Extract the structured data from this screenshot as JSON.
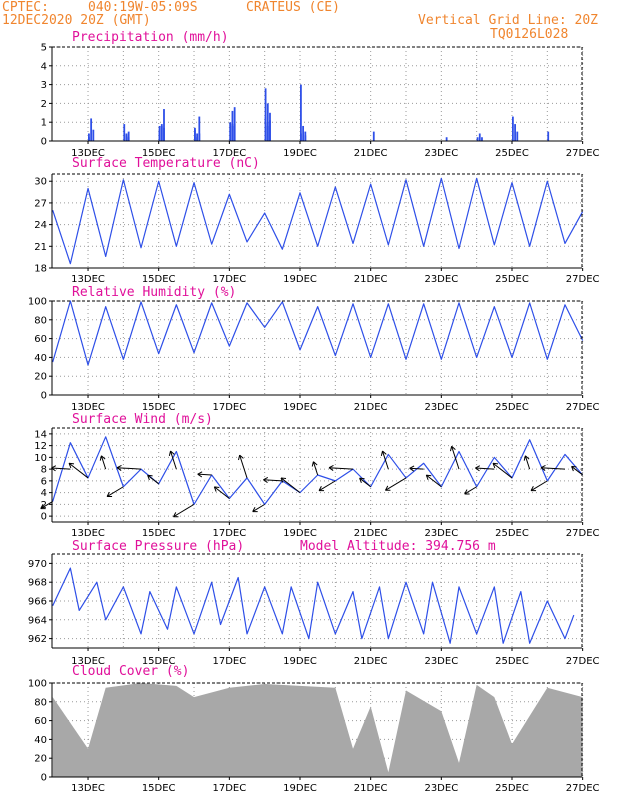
{
  "header": {
    "source": "CPTEC:",
    "coords": "040:19W-05:09S",
    "station": "CRATEUS (CE)",
    "date": "12DEC2020 20Z (GMT)",
    "grid_note": "Vertical Grid Line: 20Z",
    "code": "TQ0126L028"
  },
  "model_altitude": "Model Altitude: 394.756 m",
  "colors": {
    "header": "#f0852e",
    "title": "#e0109a",
    "line": "#2e4fe8",
    "cloud": "#a8a8a8",
    "arrow": "#000000"
  },
  "chart_data": [
    {
      "type": "bar",
      "title": "Precipitation (mm/h)",
      "x_tick_labels": [
        "13DEC",
        "15DEC",
        "17DEC",
        "19DEC",
        "21DEC",
        "23DEC",
        "25DEC",
        "27DEC"
      ],
      "ylim": [
        0,
        5
      ],
      "y_ticks": [
        0,
        1,
        2,
        3,
        4,
        5
      ],
      "grid": true,
      "x": [
        "13DEC",
        "13DEC",
        "13DEC",
        "13DEC",
        "14DEC",
        "14DEC",
        "14DEC",
        "14DEC",
        "14DEC",
        "15DEC",
        "15DEC",
        "15DEC",
        "15DEC",
        "15DEC",
        "15DEC",
        "15DEC",
        "16DEC",
        "16DEC",
        "16DEC",
        "16DEC",
        "16DEC",
        "16DEC",
        "17DEC",
        "17DEC",
        "17DEC",
        "17DEC",
        "17DEC",
        "17DEC",
        "18DEC",
        "18DEC",
        "18DEC",
        "18DEC",
        "18DEC",
        "18DEC",
        "18DEC",
        "19DEC",
        "19DEC",
        "19DEC",
        "19DEC",
        "19DEC",
        "21DEC",
        "23DEC",
        "24DEC",
        "24DEC",
        "24DEC",
        "25DEC",
        "25DEC",
        "25DEC",
        "26DEC"
      ],
      "values": [
        0.4,
        1.2,
        0.6,
        0.2,
        0.3,
        0.5,
        0.9,
        0.4,
        0.2,
        0.6,
        0.8,
        0.7,
        0.5,
        0.9,
        1.7,
        0.8,
        0.4,
        1.3,
        0.6,
        0.2,
        0.4,
        0.7,
        0.8,
        0.9,
        1.0,
        1.6,
        1.8,
        0.9,
        0.8,
        1.1,
        1.3,
        2.0,
        1.5,
        2.8,
        1.0,
        0.3,
        0.4,
        0.8,
        0.5,
        3.0,
        0.5,
        0.2,
        0.2,
        0.4,
        0.2,
        1.3,
        0.9,
        0.5,
        0.5
      ]
    },
    {
      "type": "line",
      "title": "Surface Temperature (nC)",
      "x_tick_labels": [
        "13DEC",
        "15DEC",
        "17DEC",
        "19DEC",
        "21DEC",
        "23DEC",
        "25DEC",
        "27DEC"
      ],
      "ylim": [
        18,
        31
      ],
      "y_ticks": [
        18,
        21,
        24,
        27,
        30
      ],
      "grid": true,
      "x": [
        "12DEC 20Z",
        "13DEC 08Z",
        "13DEC 20Z",
        "14DEC 08Z",
        "14DEC 20Z",
        "15DEC 08Z",
        "15DEC 20Z",
        "16DEC 08Z",
        "16DEC 20Z",
        "17DEC 08Z",
        "17DEC 20Z",
        "18DEC 08Z",
        "18DEC 20Z",
        "19DEC 08Z",
        "19DEC 20Z",
        "20DEC 08Z",
        "20DEC 20Z",
        "21DEC 08Z",
        "21DEC 20Z",
        "22DEC 08Z",
        "22DEC 20Z",
        "23DEC 08Z",
        "23DEC 20Z",
        "24DEC 08Z",
        "24DEC 20Z",
        "25DEC 08Z",
        "25DEC 20Z",
        "26DEC 08Z",
        "26DEC 20Z",
        "27DEC 08Z",
        "27DEC 20Z"
      ],
      "values": [
        26.0,
        18.6,
        29.0,
        19.6,
        30.2,
        20.8,
        30.0,
        21.0,
        29.8,
        21.3,
        28.2,
        21.6,
        25.6,
        20.6,
        28.4,
        21.0,
        29.2,
        21.4,
        29.6,
        21.2,
        30.2,
        21.0,
        30.4,
        20.7,
        30.4,
        21.2,
        29.8,
        21.0,
        30.0,
        21.4,
        25.8
      ]
    },
    {
      "type": "line",
      "title": "Relative Humidity (%)",
      "x_tick_labels": [
        "13DEC",
        "15DEC",
        "17DEC",
        "19DEC",
        "21DEC",
        "23DEC",
        "25DEC",
        "27DEC"
      ],
      "ylim": [
        0,
        100
      ],
      "y_ticks": [
        0,
        20,
        40,
        60,
        80,
        100
      ],
      "grid": true,
      "x": [
        "12DEC 20Z",
        "13DEC 08Z",
        "13DEC 20Z",
        "14DEC 08Z",
        "14DEC 20Z",
        "15DEC 08Z",
        "15DEC 20Z",
        "16DEC 08Z",
        "16DEC 20Z",
        "17DEC 08Z",
        "17DEC 20Z",
        "18DEC 08Z",
        "18DEC 20Z",
        "19DEC 08Z",
        "19DEC 20Z",
        "20DEC 08Z",
        "20DEC 20Z",
        "21DEC 08Z",
        "21DEC 20Z",
        "22DEC 08Z",
        "22DEC 20Z",
        "23DEC 08Z",
        "23DEC 20Z",
        "24DEC 08Z",
        "24DEC 20Z",
        "25DEC 08Z",
        "25DEC 20Z",
        "26DEC 08Z",
        "26DEC 20Z",
        "27DEC 08Z",
        "27DEC 20Z"
      ],
      "values": [
        35,
        100,
        32,
        94,
        38,
        99,
        44,
        96,
        45,
        98,
        52,
        98,
        72,
        99,
        48,
        94,
        42,
        97,
        40,
        97,
        38,
        97,
        38,
        98,
        40,
        94,
        40,
        98,
        38,
        96,
        58
      ]
    },
    {
      "type": "line",
      "title": "Surface Wind (m/s)",
      "x_tick_labels": [
        "13DEC",
        "15DEC",
        "17DEC",
        "19DEC",
        "21DEC",
        "23DEC",
        "25DEC",
        "27DEC"
      ],
      "ylim": [
        -1,
        15
      ],
      "y_ticks": [
        0,
        2,
        4,
        6,
        8,
        10,
        12,
        14
      ],
      "grid": true,
      "x": [
        "12DEC 20Z",
        "13DEC 08Z",
        "13DEC 20Z",
        "14DEC 08Z",
        "14DEC 20Z",
        "15DEC 08Z",
        "15DEC 20Z",
        "16DEC 08Z",
        "16DEC 20Z",
        "17DEC 08Z",
        "17DEC 20Z",
        "18DEC 08Z",
        "18DEC 20Z",
        "19DEC 08Z",
        "19DEC 20Z",
        "20DEC 08Z",
        "20DEC 20Z",
        "21DEC 08Z",
        "21DEC 20Z",
        "22DEC 08Z",
        "22DEC 20Z",
        "23DEC 08Z",
        "23DEC 20Z",
        "24DEC 08Z",
        "24DEC 20Z",
        "25DEC 08Z",
        "25DEC 20Z",
        "26DEC 08Z",
        "26DEC 20Z",
        "27DEC 08Z",
        "27DEC 20Z"
      ],
      "values": [
        2.5,
        12.5,
        6.5,
        13.5,
        5.0,
        8.0,
        5.5,
        11.0,
        2.0,
        7.0,
        3.0,
        6.5,
        2.0,
        6.0,
        4.0,
        7.0,
        6.0,
        8.0,
        5.0,
        10.5,
        6.5,
        9.0,
        5.0,
        11.0,
        5.0,
        10.0,
        6.5,
        13.0,
        6.0,
        10.5,
        7.0
      ],
      "barbs": "black wind vector arrows along the series"
    },
    {
      "type": "line",
      "title": "Surface Pressure (hPa)",
      "x_tick_labels": [
        "13DEC",
        "15DEC",
        "17DEC",
        "19DEC",
        "21DEC",
        "23DEC",
        "25DEC",
        "27DEC"
      ],
      "ylim": [
        961,
        971
      ],
      "y_ticks": [
        962,
        964,
        966,
        968,
        970
      ],
      "grid": true,
      "x": [
        "12DEC 20Z",
        "13DEC 08Z",
        "13DEC 14Z",
        "14DEC 02Z",
        "14DEC 08Z",
        "14DEC 20Z",
        "15DEC 08Z",
        "15DEC 14Z",
        "16DEC 02Z",
        "16DEC 08Z",
        "16DEC 20Z",
        "17DEC 08Z",
        "17DEC 14Z",
        "18DEC 02Z",
        "18DEC 08Z",
        "18DEC 20Z",
        "19DEC 08Z",
        "19DEC 14Z",
        "20DEC 02Z",
        "20DEC 08Z",
        "20DEC 20Z",
        "21DEC 08Z",
        "21DEC 14Z",
        "22DEC 02Z",
        "22DEC 08Z",
        "22DEC 20Z",
        "23DEC 08Z",
        "23DEC 14Z",
        "24DEC 02Z",
        "24DEC 08Z",
        "24DEC 20Z",
        "25DEC 08Z",
        "25DEC 14Z",
        "26DEC 02Z",
        "26DEC 08Z",
        "26DEC 20Z",
        "27DEC 08Z",
        "27DEC 14Z"
      ],
      "values": [
        965.5,
        969.5,
        965.0,
        968.0,
        964.0,
        967.5,
        962.5,
        967.0,
        963.0,
        967.5,
        962.5,
        968.0,
        963.5,
        968.5,
        962.5,
        967.5,
        962.5,
        967.5,
        962.0,
        968.0,
        962.5,
        967.0,
        962.0,
        967.5,
        962.0,
        968.0,
        962.5,
        968.0,
        961.5,
        967.5,
        962.5,
        967.5,
        961.5,
        967.0,
        961.5,
        966.0,
        962.0,
        964.5
      ]
    },
    {
      "type": "area",
      "title": "Cloud Cover (%)",
      "x_tick_labels": [
        "13DEC",
        "15DEC",
        "17DEC",
        "19DEC",
        "21DEC",
        "23DEC",
        "25DEC",
        "27DEC"
      ],
      "ylim": [
        0,
        100
      ],
      "y_ticks": [
        0,
        20,
        40,
        60,
        80,
        100
      ],
      "grid": true,
      "x": [
        "12DEC 20Z",
        "13DEC 20Z",
        "14DEC 08Z",
        "15DEC 08Z",
        "16DEC 08Z",
        "16DEC 20Z",
        "17DEC 20Z",
        "18DEC 20Z",
        "19DEC 20Z",
        "20DEC 20Z",
        "21DEC 08Z",
        "21DEC 20Z",
        "22DEC 08Z",
        "22DEC 20Z",
        "23DEC 20Z",
        "24DEC 08Z",
        "24DEC 20Z",
        "25DEC 08Z",
        "25DEC 20Z",
        "26DEC 20Z",
        "27DEC 20Z"
      ],
      "values": [
        85,
        30,
        95,
        100,
        97,
        85,
        95,
        99,
        97,
        95,
        30,
        75,
        5,
        92,
        70,
        15,
        98,
        85,
        35,
        95,
        85
      ]
    }
  ]
}
